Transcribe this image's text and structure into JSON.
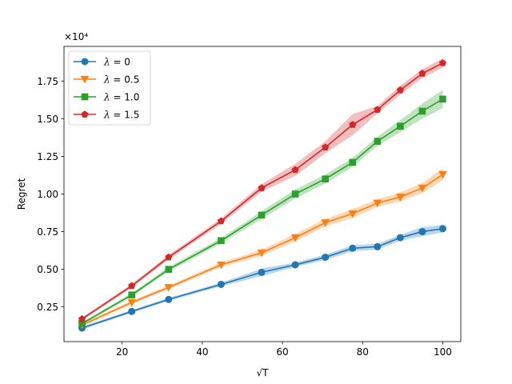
{
  "chart_data": {
    "type": "line",
    "xlabel": "√T",
    "ylabel": "Regret",
    "y_multiplier_label": "×10⁴",
    "y_scale": 10000,
    "xlim": [
      5.5,
      104.5
    ],
    "ylim": [
      0.02,
      1.98
    ],
    "xticks": [
      20,
      40,
      60,
      80,
      100
    ],
    "xtick_labels": [
      "20",
      "40",
      "60",
      "80",
      "100"
    ],
    "yticks": [
      0.25,
      0.5,
      0.75,
      1.0,
      1.25,
      1.5,
      1.75
    ],
    "ytick_labels": [
      "0.25",
      "0.50",
      "0.75",
      "1.00",
      "1.25",
      "1.50",
      "1.75"
    ],
    "grid": false,
    "legend_position": "top-left",
    "x": [
      10,
      22.4,
      31.6,
      44.7,
      54.8,
      63.2,
      70.7,
      77.5,
      83.7,
      89.4,
      94.9,
      100
    ],
    "series": [
      {
        "name": "λ = 0",
        "legend_symbol": "λ",
        "legend_value": "0",
        "color": "#1f77b4",
        "marker": "circle",
        "values": [
          0.11,
          0.22,
          0.3,
          0.4,
          0.48,
          0.53,
          0.58,
          0.64,
          0.65,
          0.71,
          0.75,
          0.77
        ],
        "band": [
          0.01,
          0.01,
          0.01,
          0.012,
          0.025,
          0.015,
          0.018,
          0.02,
          0.02,
          0.02,
          0.03,
          0.025
        ]
      },
      {
        "name": "λ = 0.5",
        "legend_symbol": "λ",
        "legend_value": "0.5",
        "color": "#ff7f0e",
        "marker": "triangle-down",
        "values": [
          0.13,
          0.28,
          0.38,
          0.53,
          0.61,
          0.71,
          0.81,
          0.87,
          0.94,
          0.98,
          1.04,
          1.13
        ],
        "band": [
          0.01,
          0.012,
          0.012,
          0.015,
          0.02,
          0.025,
          0.025,
          0.03,
          0.025,
          0.03,
          0.035,
          0.04
        ]
      },
      {
        "name": "λ = 1.0",
        "legend_symbol": "λ",
        "legend_value": "1.0",
        "color": "#2ca02c",
        "marker": "square",
        "values": [
          0.14,
          0.33,
          0.5,
          0.69,
          0.86,
          1.0,
          1.1,
          1.21,
          1.35,
          1.45,
          1.55,
          1.63
        ],
        "band": [
          0.01,
          0.012,
          0.015,
          0.018,
          0.025,
          0.03,
          0.03,
          0.03,
          0.03,
          0.04,
          0.05,
          0.06
        ]
      },
      {
        "name": "λ = 1.5",
        "legend_symbol": "λ",
        "legend_value": "1.5",
        "color": "#d62728",
        "marker": "pentagon",
        "values": [
          0.17,
          0.39,
          0.58,
          0.82,
          1.04,
          1.16,
          1.31,
          1.46,
          1.56,
          1.69,
          1.8,
          1.87
        ],
        "band": [
          0.01,
          0.012,
          0.015,
          0.018,
          0.025,
          0.04,
          0.04,
          0.07,
          0.025,
          0.03,
          0.03,
          0.03
        ]
      }
    ]
  }
}
